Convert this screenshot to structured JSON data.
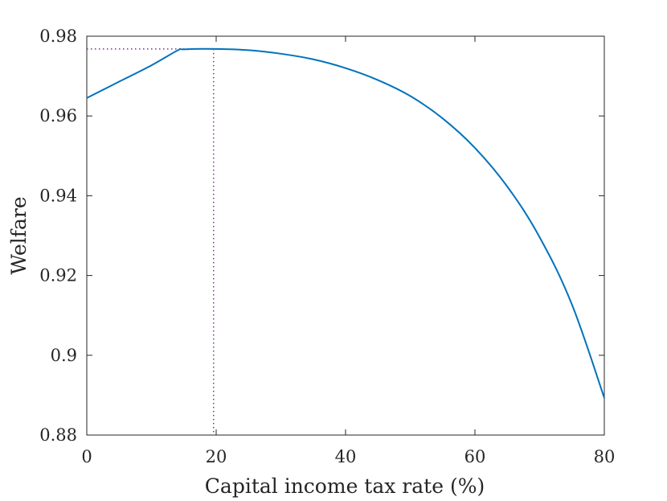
{
  "chart_data": {
    "type": "line",
    "xlabel": "Capital income tax rate (%)",
    "ylabel": "Welfare",
    "xlim": [
      0,
      80
    ],
    "ylim": [
      0.88,
      0.98
    ],
    "x_ticks": [
      0,
      20,
      40,
      60,
      80
    ],
    "x_tick_labels": [
      "0",
      "20",
      "40",
      "60",
      "80"
    ],
    "y_ticks": [
      0.88,
      0.9,
      0.92,
      0.94,
      0.96,
      0.98
    ],
    "y_tick_labels": [
      "0.88",
      "0.9",
      "0.92",
      "0.94",
      "0.96",
      "0.98"
    ],
    "grid": false,
    "series": [
      {
        "color": "#0072BD",
        "x": [
          0,
          5,
          10,
          14,
          15,
          20,
          25,
          30,
          35,
          40,
          45,
          50,
          55,
          60,
          65,
          70,
          75,
          80
        ],
        "y": [
          0.9645,
          0.9686,
          0.9727,
          0.9764,
          0.9767,
          0.9768,
          0.9765,
          0.9756,
          0.9742,
          0.972,
          0.969,
          0.965,
          0.9594,
          0.952,
          0.9423,
          0.9296,
          0.9127,
          0.8893
        ]
      }
    ],
    "annotations": [
      {
        "type": "optimum-marker",
        "x": 19.6,
        "y": 0.9768,
        "color": "#7E2F8E",
        "style": "dotted"
      }
    ]
  }
}
